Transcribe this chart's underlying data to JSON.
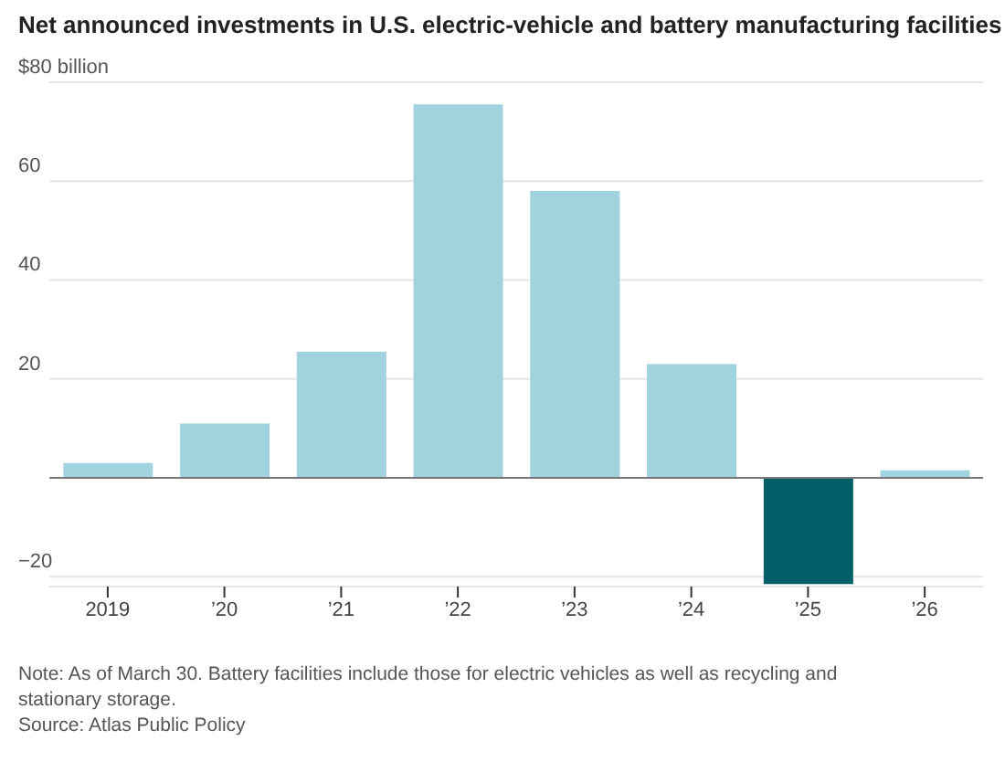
{
  "chart_data": {
    "type": "bar",
    "title": "Net announced investments in U.S. electric-vehicle and battery manufacturing facilities",
    "categories": [
      "2019",
      "’20",
      "’21",
      "’22",
      "’23",
      "’24",
      "’25",
      "’26"
    ],
    "values": [
      3,
      11,
      25.5,
      75.5,
      58,
      23,
      -21.5,
      1.5
    ],
    "colors": [
      "#a1d3de",
      "#a1d3de",
      "#a1d3de",
      "#a1d3de",
      "#a1d3de",
      "#a1d3de",
      "#005f66",
      "#a1d3de"
    ],
    "ylim": [
      -22,
      80
    ],
    "yticks": [
      {
        "value": -20,
        "label": "−20"
      },
      {
        "value": 0,
        "label": null
      },
      20,
      40,
      60,
      {
        "value": 80,
        "label": "$80 billion"
      }
    ],
    "grid": "y",
    "annotations": [
      "Note: As of March 30. Battery facilities include those for electric vehicles as well as recycling and stationary storage.",
      "Source: Atlas Public Policy"
    ]
  }
}
